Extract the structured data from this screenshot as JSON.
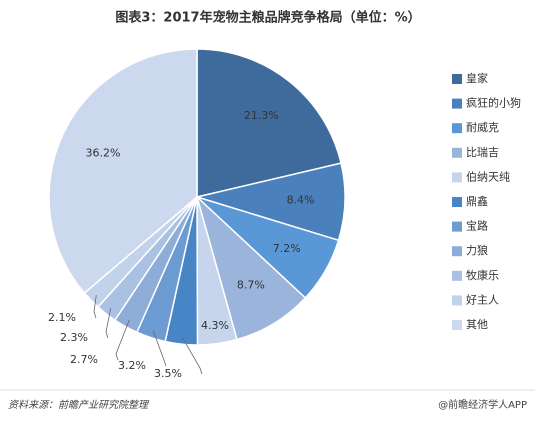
{
  "chart_data": {
    "type": "pie",
    "title": "图表3：2017年宠物主粮品牌竞争格局（单位：%）",
    "categories": [
      "皇家",
      "疯狂的小狗",
      "耐威克",
      "比瑞吉",
      "伯纳天纯",
      "鼎鑫",
      "宝路",
      "力狼",
      "牧康乐",
      "好主人",
      "其他"
    ],
    "values": [
      21.3,
      8.4,
      7.2,
      8.7,
      4.3,
      3.5,
      3.2,
      2.7,
      2.3,
      2.1,
      36.2
    ],
    "value_labels": [
      "21.3%",
      "8.4%",
      "7.2%",
      "8.7%",
      "4.3%",
      "3.5%",
      "3.2%",
      "2.7%",
      "2.3%",
      "2.1%",
      "36.2%"
    ],
    "colors": [
      "#3e6b9c",
      "#4a80bb",
      "#5a97d6",
      "#9ab4dc",
      "#c6d5ec",
      "#4785c6",
      "#6c9bd2",
      "#8dadd8",
      "#aac1e3",
      "#c2d2ea",
      "#cbd8ee"
    ],
    "source": "资料来源：前瞻产业研究院整理",
    "credit": "@前瞻经济学人APP"
  }
}
